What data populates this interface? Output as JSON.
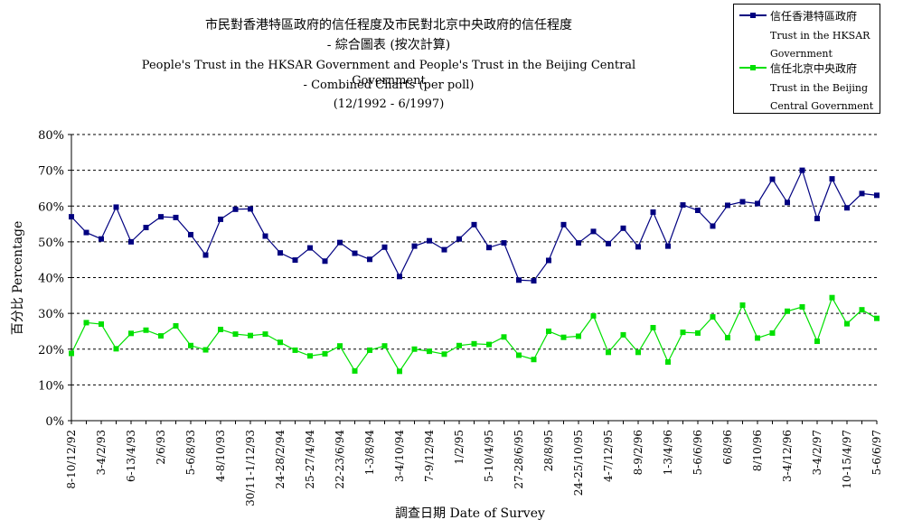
{
  "title_lines": [
    "市民對香港特區政府的信任程度及市民對北京中央政府的信任程度",
    "- 綜合圖表 (按次計算)",
    "People's Trust in the HKSAR Government and People's Trust in the Beijing Central Government",
    "- Combined Charts (per poll)",
    "(12/1992 - 6/1997)"
  ],
  "colors": {
    "hksar": "#000080",
    "beijing": "#00e000",
    "grid": "#000000"
  },
  "legend": [
    {
      "zh": "信任香港特區政府",
      "en1": "Trust in the HKSAR",
      "en2": "Government"
    },
    {
      "zh": "信任北京中央政府",
      "en1": "Trust in the Beijing",
      "en2": "Central Government"
    }
  ],
  "chart_data": {
    "type": "line",
    "title": "市民對香港特區政府的信任程度及市民對北京中央政府的信任程度 - 綜合圖表 (按次計算) People's Trust in the HKSAR Government and People's Trust in the Beijing Central Government - Combined Charts (per poll) (12/1992 - 6/1997)",
    "xlabel": "調查日期 Date of Survey",
    "ylabel": "百分比 Percentage",
    "ylim": [
      0,
      80
    ],
    "yticks": [
      "0%",
      "10%",
      "20%",
      "30%",
      "40%",
      "50%",
      "60%",
      "70%",
      "80%"
    ],
    "grid": "horizontal dashed",
    "legend_position": "top-right",
    "x_tick_labels": [
      "8-10/12/92",
      "3-4/2/93",
      "6-13/4/93",
      "2/6/93",
      "5-6/8/93",
      "4-8/10/93",
      "30/11-1/12/93",
      "24-28/2/94",
      "25-27/4/94",
      "22-23/6/94",
      "1-3/8/94",
      "3-4/10/94",
      "7-9/12/94",
      "1/2/95",
      "5-10/4/95",
      "27-28/6/95",
      "28/8/95",
      "24-25/10/95",
      "4-7/12/95",
      "8-9/2/96",
      "1-3/4/96",
      "5-6/6/96",
      "6/8/96",
      "8/10/96",
      "3-4/12/96",
      "3-4/2/97",
      "10-15/4/97",
      "5-6/6/97"
    ],
    "series": [
      {
        "name": "信任香港特區政府 Trust in the HKSAR Government",
        "values": [
          57,
          52.6,
          50.8,
          59.7,
          50,
          54,
          57,
          56.8,
          52,
          46.3,
          56.3,
          59.1,
          59.2,
          51.6,
          46.9,
          44.9,
          48.3,
          44.6,
          49.8,
          46.8,
          45.1,
          48.5,
          40.3,
          48.8,
          50.3,
          47.8,
          50.8,
          54.8,
          48.4,
          49.7,
          39.3,
          39.1,
          44.8,
          54.8,
          49.7,
          52.9,
          49.5,
          53.8,
          48.6,
          58.3,
          48.8,
          60.3,
          58.8,
          54.4,
          60.2,
          61.2,
          60.7,
          67.5,
          61,
          70,
          56.5,
          67.6,
          59.5,
          63.5,
          63
        ]
      },
      {
        "name": "信任北京中央政府 Trust in the Beijing Central Government",
        "values": [
          18.8,
          27.4,
          27,
          20.1,
          24.4,
          25.3,
          23.7,
          26.5,
          21,
          19.8,
          25.5,
          24.2,
          23.8,
          24.2,
          21.9,
          19.7,
          18.1,
          18.7,
          20.9,
          13.9,
          19.7,
          20.9,
          13.8,
          20,
          19.4,
          18.6,
          21,
          21.5,
          21.3,
          23.4,
          18.3,
          17.1,
          25,
          23.3,
          23.6,
          29.3,
          19.1,
          24,
          19.1,
          26,
          16.4,
          24.7,
          24.5,
          29,
          23.2,
          32.3,
          23.1,
          24.5,
          30.6,
          31.8,
          22.2,
          34.4,
          27.1,
          31,
          28.6
        ]
      }
    ]
  }
}
